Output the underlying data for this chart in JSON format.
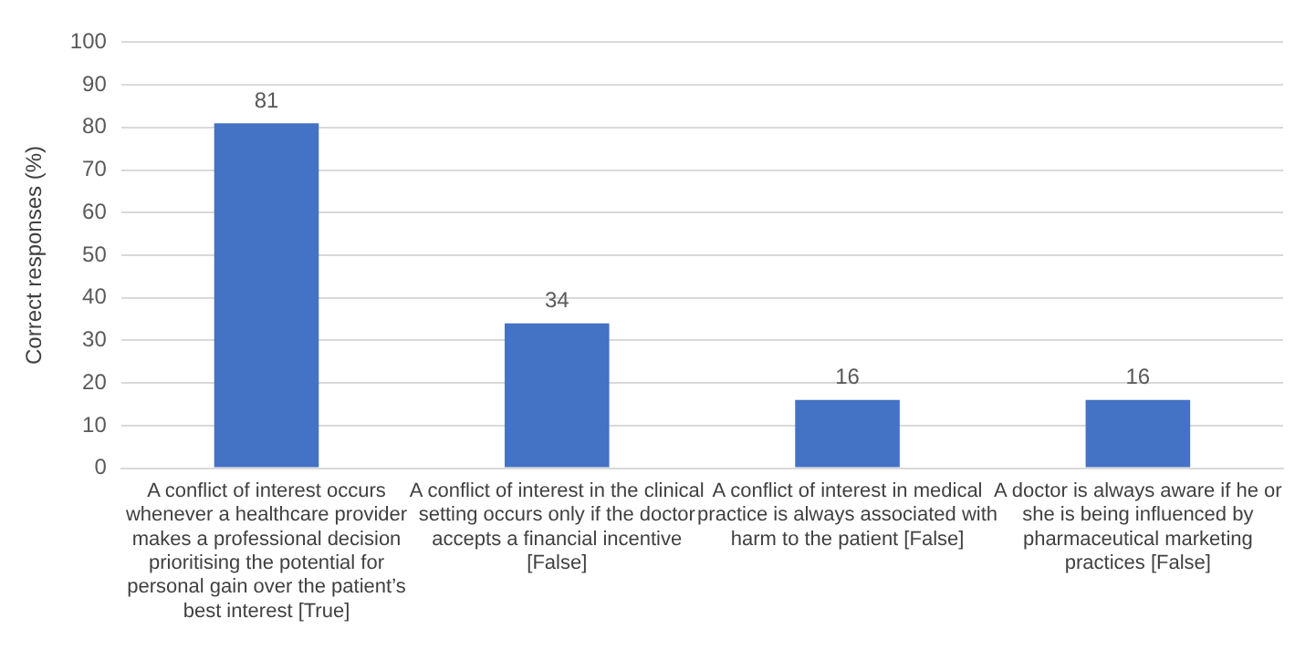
{
  "chart_data": {
    "type": "bar",
    "ylabel": "Correct responses (%)",
    "categories": [
      "A conflict of interest occurs whenever a healthcare provider makes a professional decision prioritising the potential for personal gain over the patient’s best interest [True]",
      "A conflict of interest in the clinical setting occurs only if the doctor accepts a financial incentive [False]",
      "A conflict of interest in medical practice is always associated with harm to the patient [False]",
      "A doctor is always aware if he or she is being influenced by pharmaceutical marketing practices [False]"
    ],
    "values": [
      81,
      34,
      16,
      16
    ],
    "color": "#4472c4",
    "ylim": [
      0,
      100
    ],
    "yticks": [
      0,
      10,
      20,
      30,
      40,
      50,
      60,
      70,
      80,
      90,
      100
    ],
    "grid": "y",
    "data_labels": true,
    "legend": false
  }
}
